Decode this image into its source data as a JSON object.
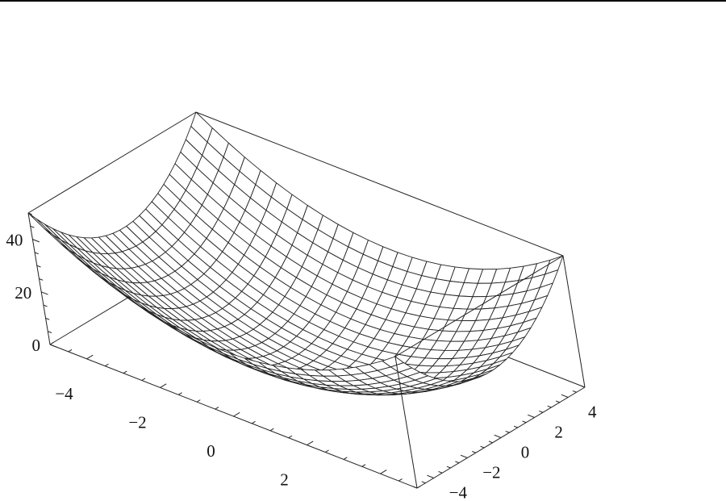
{
  "chart_data": {
    "type": "surface",
    "function": "z = x^2 + y^2",
    "x_range": [
      -5,
      5
    ],
    "y_range": [
      -5,
      5
    ],
    "z_range": [
      0,
      50
    ],
    "mesh_lines": 25,
    "x_ticks": [
      {
        "value": -4,
        "label": "−4"
      },
      {
        "value": -2,
        "label": "−2"
      },
      {
        "value": 0,
        "label": "0"
      },
      {
        "value": 2,
        "label": "2"
      },
      {
        "value": 4,
        "label": "4"
      }
    ],
    "y_ticks": [
      {
        "value": -4,
        "label": "−4"
      },
      {
        "value": -2,
        "label": "−2"
      },
      {
        "value": 0,
        "label": "0"
      },
      {
        "value": 2,
        "label": "2"
      },
      {
        "value": 4,
        "label": "4"
      }
    ],
    "z_ticks": [
      {
        "value": 0,
        "label": "0"
      },
      {
        "value": 20,
        "label": "20"
      },
      {
        "value": 40,
        "label": "40"
      }
    ],
    "title": "",
    "xlabel": "",
    "ylabel": "",
    "zlabel": "",
    "box": true,
    "colors": {
      "mesh": "#222222",
      "face": "#ffffff",
      "box": "#222222"
    }
  }
}
